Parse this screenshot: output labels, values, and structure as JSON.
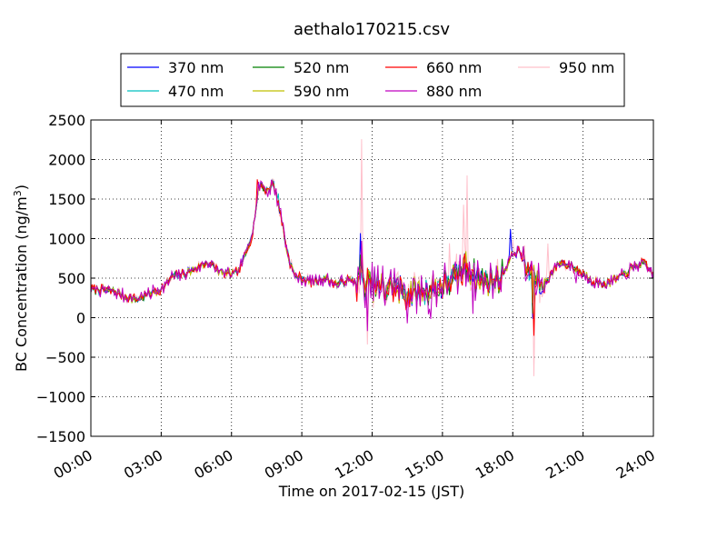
{
  "chart_data": {
    "type": "line",
    "title": "aethalo170215.csv",
    "xlabel": "Time on 2017-02-15 (JST)",
    "ylabel_main": "BC Concentration (ng/m",
    "ylabel_sup": "3",
    "ylabel_close": ")",
    "xlim": [
      0,
      24
    ],
    "ylim": [
      -1500,
      2500
    ],
    "x_ticks": [
      0,
      3,
      6,
      9,
      12,
      15,
      18,
      21,
      24
    ],
    "x_tick_labels": [
      "00:00",
      "03:00",
      "06:00",
      "09:00",
      "12:00",
      "15:00",
      "18:00",
      "21:00",
      "24:00"
    ],
    "y_ticks": [
      -1500,
      -1000,
      -500,
      0,
      500,
      1000,
      1500,
      2000,
      2500
    ],
    "y_tick_labels": [
      "−1500",
      "−1000",
      "−500",
      "0",
      "500",
      "1000",
      "1500",
      "2000",
      "2500"
    ],
    "grid": true,
    "legend_position": "top",
    "series": [
      {
        "name": "370 nm",
        "color": "#0000ff"
      },
      {
        "name": "470 nm",
        "color": "#00bfbf"
      },
      {
        "name": "520 nm",
        "color": "#008000"
      },
      {
        "name": "590 nm",
        "color": "#bfbf00"
      },
      {
        "name": "660 nm",
        "color": "#ff0000"
      },
      {
        "name": "880 nm",
        "color": "#bf00bf"
      },
      {
        "name": "950 nm",
        "color": "#ffc0cb"
      }
    ],
    "base_profile": {
      "x": [
        0,
        0.5,
        1,
        1.5,
        2,
        2.5,
        3,
        3.5,
        4,
        4.5,
        5,
        5.5,
        6,
        6.3,
        6.6,
        6.9,
        7.2,
        7.5,
        7.8,
        8.1,
        8.4,
        8.7,
        9,
        9.5,
        10,
        10.5,
        11,
        11.5,
        12,
        12.5,
        13,
        13.5,
        14,
        14.5,
        15,
        15.5,
        16,
        16.5,
        17,
        17.5,
        18,
        18.3,
        18.6,
        18.9,
        19.2,
        19.5,
        20,
        20.5,
        21,
        21.5,
        22,
        22.5,
        23,
        23.5,
        24
      ],
      "y": [
        360,
        350,
        330,
        260,
        230,
        310,
        360,
        520,
        560,
        620,
        700,
        580,
        550,
        580,
        800,
        1100,
        1700,
        1600,
        1700,
        1300,
        800,
        520,
        500,
        450,
        500,
        420,
        480,
        420,
        430,
        380,
        400,
        300,
        320,
        350,
        400,
        500,
        650,
        500,
        450,
        520,
        800,
        850,
        600,
        580,
        350,
        500,
        700,
        650,
        550,
        450,
        430,
        500,
        600,
        700,
        550
      ]
    }
  }
}
